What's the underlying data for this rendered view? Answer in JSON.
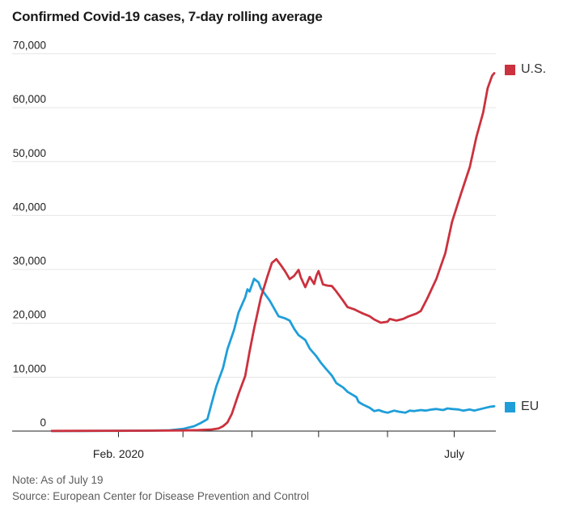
{
  "chart_data": {
    "type": "line",
    "title": "Confirmed Covid-19 cases, 7-day rolling average",
    "note": "Note: As of July 19",
    "source": "Source: European Center for Disease Prevention and Control",
    "xlabel": "",
    "ylabel": "",
    "ylim": [
      0,
      70000
    ],
    "grid": "horizontal",
    "legend_position": "right",
    "x_domain_note": "x values are day-of-year 2020, Jan 2 (2) through July 19 (201)",
    "y_ticks": [
      {
        "value": 0,
        "label": "0"
      },
      {
        "value": 10000,
        "label": "10,000"
      },
      {
        "value": 20000,
        "label": "20,000"
      },
      {
        "value": 30000,
        "label": "30,000"
      },
      {
        "value": 40000,
        "label": "40,000"
      },
      {
        "value": 50000,
        "label": "50,000"
      },
      {
        "value": 60000,
        "label": "60,000"
      },
      {
        "value": 70000,
        "label": "70,000"
      }
    ],
    "x_ticks": [
      {
        "day": 32,
        "label": "Feb. 2020"
      },
      {
        "day": 61,
        "label": ""
      },
      {
        "day": 92,
        "label": ""
      },
      {
        "day": 122,
        "label": ""
      },
      {
        "day": 153,
        "label": ""
      },
      {
        "day": 183,
        "label": "July"
      }
    ],
    "colors": {
      "us": "#cb313e",
      "eu": "#1f9ed9",
      "grid": "#e6e6e6",
      "axis": "#222222",
      "tick_text": "#222222",
      "muted_text": "#5c5c5c"
    },
    "series": [
      {
        "name": "U.S.",
        "color": "#cb313e",
        "points": [
          [
            2,
            30
          ],
          [
            15,
            40
          ],
          [
            32,
            60
          ],
          [
            45,
            80
          ],
          [
            61,
            120
          ],
          [
            68,
            180
          ],
          [
            74,
            300
          ],
          [
            77,
            500
          ],
          [
            79,
            900
          ],
          [
            81,
            1600
          ],
          [
            83,
            3200
          ],
          [
            86,
            6900
          ],
          [
            89,
            10200
          ],
          [
            91,
            14800
          ],
          [
            93,
            19000
          ],
          [
            96,
            24700
          ],
          [
            99,
            28700
          ],
          [
            101,
            31200
          ],
          [
            103,
            31900
          ],
          [
            105,
            30800
          ],
          [
            107,
            29600
          ],
          [
            109,
            28200
          ],
          [
            111,
            28800
          ],
          [
            113,
            29900
          ],
          [
            114,
            28500
          ],
          [
            116,
            26700
          ],
          [
            118,
            28600
          ],
          [
            120,
            27300
          ],
          [
            121,
            28800
          ],
          [
            122,
            29700
          ],
          [
            124,
            27200
          ],
          [
            126,
            27000
          ],
          [
            128,
            26900
          ],
          [
            130,
            25900
          ],
          [
            133,
            24200
          ],
          [
            135,
            23000
          ],
          [
            138,
            22600
          ],
          [
            140,
            22200
          ],
          [
            142,
            21800
          ],
          [
            145,
            21300
          ],
          [
            147,
            20700
          ],
          [
            150,
            20100
          ],
          [
            153,
            20300
          ],
          [
            154,
            20800
          ],
          [
            157,
            20500
          ],
          [
            160,
            20800
          ],
          [
            162,
            21200
          ],
          [
            164,
            21500
          ],
          [
            166,
            21800
          ],
          [
            168,
            22300
          ],
          [
            171,
            24700
          ],
          [
            175,
            28250
          ],
          [
            179,
            33000
          ],
          [
            182,
            38800
          ],
          [
            186,
            44000
          ],
          [
            190,
            49000
          ],
          [
            193,
            54600
          ],
          [
            196,
            59100
          ],
          [
            198,
            63600
          ],
          [
            200,
            65900
          ],
          [
            201,
            66400
          ]
        ]
      },
      {
        "name": "EU",
        "color": "#1f9ed9",
        "points": [
          [
            2,
            10
          ],
          [
            15,
            20
          ],
          [
            32,
            40
          ],
          [
            45,
            80
          ],
          [
            55,
            150
          ],
          [
            61,
            400
          ],
          [
            66,
            900
          ],
          [
            69,
            1500
          ],
          [
            72,
            2200
          ],
          [
            74,
            5300
          ],
          [
            76,
            8300
          ],
          [
            79,
            11700
          ],
          [
            81,
            15200
          ],
          [
            84,
            18800
          ],
          [
            86,
            22000
          ],
          [
            89,
            24800
          ],
          [
            90,
            26300
          ],
          [
            91,
            25900
          ],
          [
            93,
            28250
          ],
          [
            95,
            27600
          ],
          [
            96,
            26500
          ],
          [
            100,
            24200
          ],
          [
            104,
            21300
          ],
          [
            107,
            20900
          ],
          [
            109,
            20500
          ],
          [
            111,
            19000
          ],
          [
            113,
            17800
          ],
          [
            116,
            16900
          ],
          [
            118,
            15300
          ],
          [
            121,
            13900
          ],
          [
            123,
            12700
          ],
          [
            125,
            11700
          ],
          [
            128,
            10300
          ],
          [
            130,
            8900
          ],
          [
            133,
            8100
          ],
          [
            135,
            7300
          ],
          [
            137,
            6800
          ],
          [
            139,
            6300
          ],
          [
            140,
            5400
          ],
          [
            142,
            4900
          ],
          [
            145,
            4300
          ],
          [
            147,
            3700
          ],
          [
            149,
            3900
          ],
          [
            151,
            3600
          ],
          [
            153,
            3400
          ],
          [
            156,
            3800
          ],
          [
            158,
            3600
          ],
          [
            161,
            3400
          ],
          [
            163,
            3800
          ],
          [
            165,
            3700
          ],
          [
            168,
            3900
          ],
          [
            170,
            3800
          ],
          [
            173,
            4000
          ],
          [
            175,
            4100
          ],
          [
            178,
            3900
          ],
          [
            180,
            4200
          ],
          [
            182,
            4100
          ],
          [
            185,
            4000
          ],
          [
            187,
            3800
          ],
          [
            190,
            4000
          ],
          [
            192,
            3800
          ],
          [
            194,
            4000
          ],
          [
            197,
            4300
          ],
          [
            199,
            4500
          ],
          [
            201,
            4600
          ]
        ]
      }
    ]
  }
}
